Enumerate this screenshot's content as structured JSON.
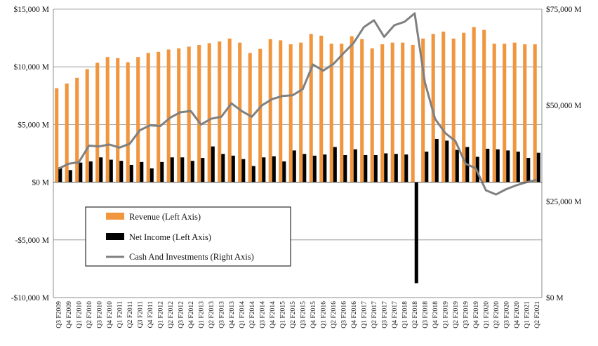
{
  "chart_data": {
    "type": "bar",
    "categories": [
      "Q3 F2009",
      "Q4 F2009",
      "Q1 F2010",
      "Q2 F2010",
      "Q3 F2010",
      "Q4 F2010",
      "Q1 F2011",
      "Q2 F2011",
      "Q3 F2011",
      "Q4 F2011",
      "Q1 F2012",
      "Q2 F2012",
      "Q3 F2012",
      "Q4 F2012",
      "Q1 F2013",
      "Q2 F2013",
      "Q3 F2013",
      "Q4 F2013",
      "Q1 F2014",
      "Q2 F2014",
      "Q3 F2014",
      "Q4 F2014",
      "Q1 F2015",
      "Q2 F2015",
      "Q3 F2015",
      "Q4 F2015",
      "Q1 F2016",
      "Q2 F2016",
      "Q3 F2016",
      "Q4 F2016",
      "Q1 F2017",
      "Q2 F2017",
      "Q3 F2017",
      "Q4 F2017",
      "Q1 F2018",
      "Q2 F2018",
      "Q3 F2018",
      "Q4 F2018",
      "Q1 F2019",
      "Q2 F2019",
      "Q3 F2019",
      "Q4 F2019",
      "Q1 F2020",
      "Q2 F2020",
      "Q3 F2020",
      "Q4 F2020",
      "Q1 F2021",
      "Q2 F2021"
    ],
    "series": [
      {
        "name": "Revenue (Left Axis)",
        "axis": "left",
        "kind": "bar",
        "color": "#F0963F",
        "values": [
          8150,
          8550,
          9050,
          9800,
          10350,
          10850,
          10750,
          10400,
          10850,
          11200,
          11300,
          11500,
          11600,
          11750,
          11900,
          12050,
          12200,
          12450,
          12100,
          11200,
          11550,
          12400,
          12300,
          11950,
          12100,
          12850,
          12700,
          12000,
          12000,
          12650,
          12400,
          11600,
          11950,
          12100,
          12100,
          11900,
          12450,
          12850,
          13050,
          12450,
          12950,
          13450,
          13200,
          12000,
          12000,
          12100,
          11950,
          11950
        ]
      },
      {
        "name": "Net Income (Left Axis)",
        "axis": "left",
        "kind": "bar",
        "color": "#000000",
        "values": [
          1300,
          1050,
          1700,
          1800,
          2150,
          1950,
          1850,
          1500,
          1750,
          1200,
          1750,
          2150,
          2150,
          1850,
          2100,
          3100,
          2450,
          2300,
          2000,
          1400,
          2150,
          2250,
          1800,
          2750,
          2450,
          2300,
          2400,
          3050,
          2350,
          2850,
          2350,
          2350,
          2500,
          2450,
          2400,
          -8750,
          2650,
          3750,
          3600,
          2800,
          3050,
          2200,
          2900,
          2850,
          2750,
          2650,
          2100,
          2550
        ]
      },
      {
        "name": "Cash And Investments (Right Axis)",
        "axis": "right",
        "kind": "line",
        "color": "#808080",
        "values": [
          33500,
          34800,
          35200,
          39500,
          39300,
          39800,
          39000,
          40000,
          43500,
          44800,
          44600,
          46800,
          48200,
          48500,
          45000,
          46500,
          47000,
          50500,
          48500,
          47000,
          50000,
          51600,
          52400,
          52600,
          54200,
          60600,
          59000,
          60700,
          63500,
          66200,
          70300,
          72100,
          67800,
          70800,
          71700,
          73900,
          56000,
          46500,
          42800,
          40700,
          34800,
          33600,
          27900,
          26800,
          28200,
          29200,
          30000,
          30600
        ]
      }
    ],
    "left_axis": {
      "ylim": [
        -10000,
        15000
      ],
      "ticks": [
        -10000,
        -5000,
        0,
        5000,
        10000,
        15000
      ],
      "tick_labels": [
        "-$10,000 M",
        "-$5,000 M",
        "$0 M",
        "$5,000 M",
        "$10,000 M",
        "$15,000 M"
      ]
    },
    "right_axis": {
      "ylim": [
        0,
        75000
      ],
      "ticks": [
        0,
        25000,
        50000,
        75000
      ],
      "tick_labels": [
        "$0 M",
        "$25,000 M",
        "$50,000 M",
        "$75,000 M"
      ]
    },
    "grid": true,
    "legend": "inside-bottom-left",
    "title": "",
    "xlabel": "",
    "ylabel": ""
  }
}
